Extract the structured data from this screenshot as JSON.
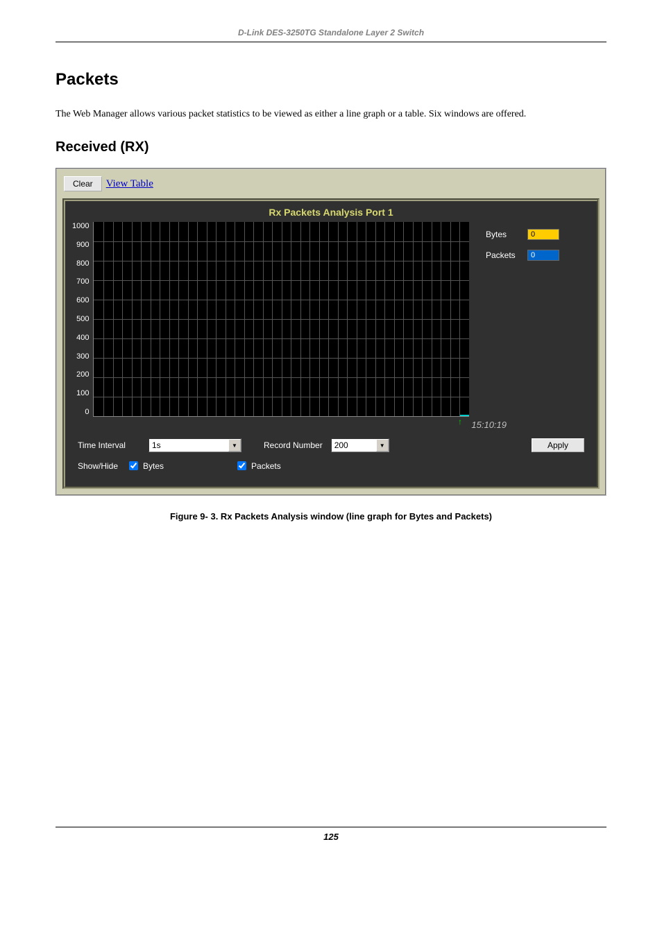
{
  "header": {
    "text": "D-Link DES-3250TG Standalone Layer 2 Switch"
  },
  "section": {
    "title": "Packets"
  },
  "paragraph": {
    "text": "The Web Manager allows various packet statistics to be viewed as either a line graph or a table. Six windows are offered."
  },
  "subsection": {
    "title": "Received (RX)"
  },
  "screenshot": {
    "topbar": {
      "clear_label": "Clear",
      "view_table_label": "View Table"
    },
    "chart": {
      "title": "Rx Packets Analysis   Port 1",
      "type": "line",
      "y_ticks": [
        "1000",
        "900",
        "800",
        "700",
        "600",
        "500",
        "400",
        "300",
        "200",
        "100",
        "0"
      ],
      "ylim": [
        0,
        1000
      ],
      "grid_color": "#555555",
      "background_color": "#000000",
      "panel_bg": "#303030",
      "axis_label_color": "#ffffff",
      "title_color": "#d8d870",
      "title_fontsize": 14,
      "label_fontsize": 11,
      "grid_v_count": 40,
      "grid_h_count": 10,
      "timestamp": "15:10:19",
      "timestamp_color": "#c0c0c0",
      "marker_color": "#00cccc",
      "arrow_color": "#00cc00"
    },
    "legend": {
      "items": [
        {
          "label": "Bytes",
          "value": "0",
          "bg": "#ffcc00",
          "fg": "#000000"
        },
        {
          "label": "Packets",
          "value": "0",
          "bg": "#0066cc",
          "fg": "#ffffff"
        }
      ]
    },
    "controls": {
      "time_interval_label": "Time Interval",
      "time_interval_value": "1s",
      "record_number_label": "Record Number",
      "record_number_value": "200",
      "apply_label": "Apply",
      "showhide_label": "Show/Hide",
      "cb_bytes_label": "Bytes",
      "cb_bytes_checked": true,
      "cb_packets_label": "Packets",
      "cb_packets_checked": true
    }
  },
  "caption": {
    "text": "Figure 9- 3.  Rx Packets Analysis window (line graph for Bytes and Packets)"
  },
  "footer": {
    "page_number": "125"
  }
}
